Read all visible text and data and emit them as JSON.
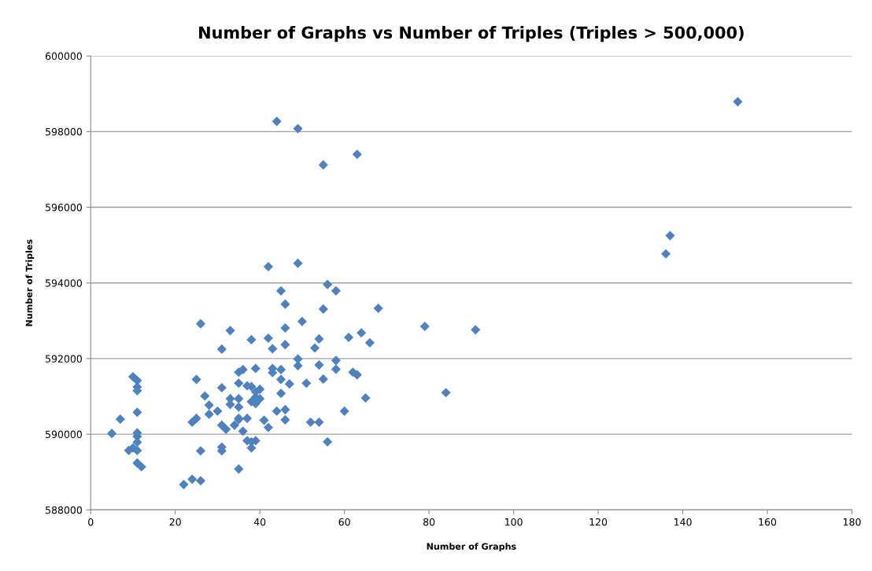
{
  "chart_data": {
    "type": "scatter",
    "title": "Number of Graphs vs Number of Triples (Triples > 500,000)",
    "xlabel": "Number of Graphs",
    "ylabel": "Number of Triples",
    "xlim": [
      0,
      180
    ],
    "xticks": [
      0,
      20,
      40,
      60,
      80,
      100,
      120,
      140,
      160,
      180
    ],
    "ylim": [
      588000,
      600000
    ],
    "yticks": [
      588000,
      590000,
      592000,
      594000,
      596000,
      598000,
      600000
    ],
    "grid": "y",
    "marker": "diamond",
    "series": [
      {
        "color": "#4f81bd",
        "x": [
          44,
          49,
          55,
          63,
          153,
          136,
          137,
          91,
          79,
          84,
          5,
          7,
          10,
          11,
          11,
          11,
          11,
          11,
          11,
          11,
          9,
          10,
          11,
          11,
          12,
          26,
          33,
          31,
          25,
          31,
          27,
          28,
          28,
          30,
          24,
          25,
          31,
          32,
          34,
          35,
          26,
          31,
          31,
          35,
          22,
          24,
          26,
          35,
          36,
          35,
          33,
          33,
          35,
          35,
          46,
          55,
          68,
          50,
          46,
          38,
          42,
          43,
          46,
          54,
          53,
          61,
          64,
          66,
          49,
          49,
          58,
          58,
          54,
          62,
          63,
          39,
          43,
          43,
          45,
          45,
          47,
          51,
          55,
          37,
          38,
          39,
          40,
          39,
          40,
          38,
          39,
          45,
          65,
          60,
          44,
          46,
          35,
          37,
          41,
          42,
          46,
          52,
          54,
          36,
          37,
          38,
          39,
          38,
          56,
          42,
          49,
          45,
          56,
          58
        ],
        "values": [
          598270,
          598080,
          597120,
          597400,
          598790,
          594770,
          595250,
          592760,
          592850,
          591100,
          590020,
          590400,
          591520,
          591420,
          591250,
          591150,
          590580,
          590040,
          589940,
          589790,
          589570,
          589640,
          589570,
          589240,
          589140,
          592920,
          592740,
          592250,
          591450,
          591230,
          591010,
          590770,
          590530,
          590610,
          590320,
          590420,
          590240,
          590130,
          590240,
          590390,
          589560,
          589660,
          589560,
          589080,
          588670,
          588810,
          588770,
          591640,
          591710,
          591350,
          590940,
          590790,
          590940,
          590720,
          593440,
          593310,
          593330,
          592980,
          592810,
          592500,
          592540,
          592260,
          592370,
          592520,
          592280,
          592560,
          592680,
          592420,
          591990,
          591810,
          591950,
          591720,
          591830,
          591640,
          591570,
          591740,
          591740,
          591630,
          591710,
          591450,
          591330,
          591350,
          591460,
          591280,
          591260,
          591120,
          591190,
          590980,
          590940,
          590860,
          590810,
          591080,
          590960,
          590610,
          590610,
          590650,
          590420,
          590420,
          590370,
          590180,
          590380,
          590320,
          590320,
          590080,
          589830,
          589800,
          589830,
          589640,
          589800,
          594430,
          594520,
          593790,
          593960,
          593790
        ]
      }
    ]
  }
}
